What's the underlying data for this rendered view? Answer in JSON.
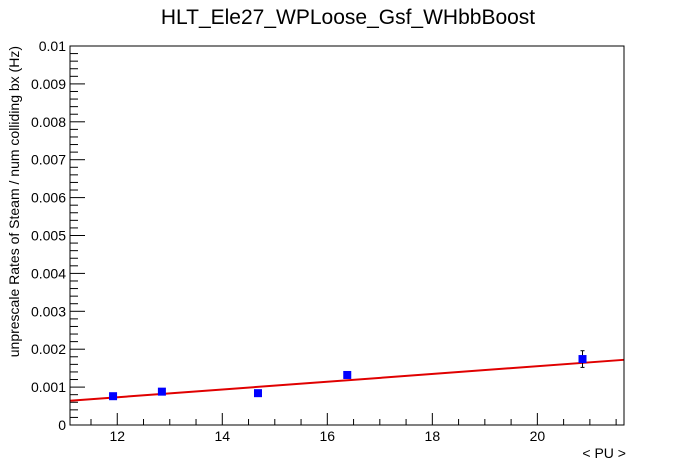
{
  "chart_data": {
    "type": "scatter",
    "title": "HLT_Ele27_WPLoose_Gsf_WHbbBoost",
    "xlabel": "< PU >",
    "ylabel": "unprescale Rates of Steam / num colliding bx (Hz)",
    "xlim": [
      11.1,
      21.65
    ],
    "ylim": [
      0,
      0.01
    ],
    "x_ticks": [
      12,
      14,
      16,
      18,
      20
    ],
    "x_tick_labels": [
      "12",
      "14",
      "16",
      "18",
      "20"
    ],
    "y_ticks": [
      0,
      0.001,
      0.002,
      0.003,
      0.004,
      0.005,
      0.006,
      0.007,
      0.008,
      0.009,
      0.01
    ],
    "y_tick_labels": [
      "0",
      "0.001",
      "0.002",
      "0.003",
      "0.004",
      "0.005",
      "0.006",
      "0.007",
      "0.008",
      "0.009",
      "0.01"
    ],
    "grid": false,
    "series": [
      {
        "points": [
          {
            "x": 11.92,
            "y": 0.00076,
            "yerr": 5e-05
          },
          {
            "x": 12.85,
            "y": 0.00088,
            "yerr": 5e-05
          },
          {
            "x": 14.68,
            "y": 0.00084,
            "yerr": 4e-05
          },
          {
            "x": 16.38,
            "y": 0.00132,
            "yerr": 8e-05
          },
          {
            "x": 20.86,
            "y": 0.00174,
            "yerr": 0.00022
          }
        ],
        "color": "#0000ff"
      }
    ],
    "fit_line": {
      "x": [
        11.1,
        21.65
      ],
      "y": [
        0.00064,
        0.00172
      ],
      "color": "#e00000"
    }
  }
}
